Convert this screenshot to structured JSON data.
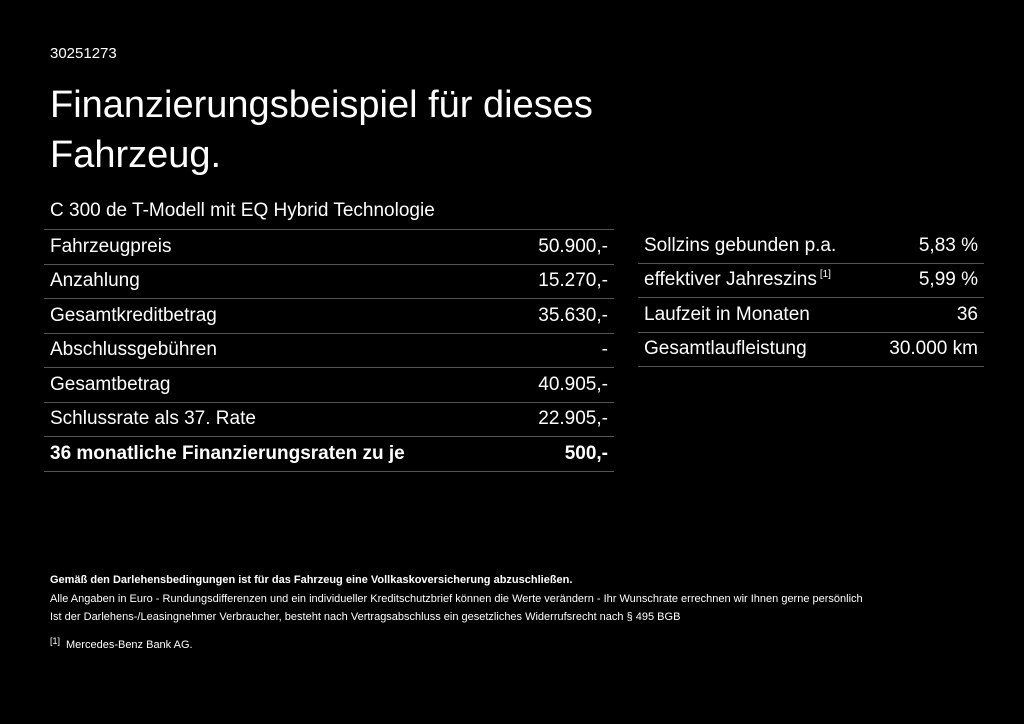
{
  "header": {
    "id": "30251273",
    "title": "Finanzierungsbeispiel für dieses Fahrzeug.",
    "model": "C 300 de T-Modell mit EQ Hybrid Technologie"
  },
  "left_table": {
    "rows": [
      [
        "Fahrzeugpreis",
        "50.900,-"
      ],
      [
        "Anzahlung",
        "15.270,-"
      ],
      [
        "Gesamtkreditbetrag",
        "35.630,-"
      ],
      [
        "Abschlussgebühren",
        "-"
      ],
      [
        "Gesamtbetrag",
        "40.905,-"
      ],
      [
        "Schlussrate als 37. Rate",
        "22.905,-"
      ],
      [
        "36 monatliche Finanzierungsraten zu je",
        "500,-"
      ]
    ]
  },
  "right_table": {
    "rows": [
      {
        "label": "Sollzins gebunden p.a.",
        "value": "5,83 %"
      },
      {
        "label": "effektiver Jahreszins",
        "note": "[1]",
        "value": "5,99 %"
      },
      {
        "label": "Laufzeit in Monaten",
        "value": "36"
      },
      {
        "label": "Gesamtlaufleistung",
        "value": "30.000 km"
      }
    ]
  },
  "notes": {
    "bold": "Gemäß den Darlehensbedingungen ist für das Fahrzeug eine Vollkaskoversicherung abzuschließen.",
    "lines": [
      "Alle Angaben in Euro - Rundungsdifferenzen und ein individueller Kreditschutzbrief können die Werte verändern - Ihr Wunschrate errechnen wir Ihnen gerne persönlich",
      "Ist der Darlehens-/Leasingnehmer Verbraucher, besteht nach Vertragsabschluss ein gesetzliches Widerrufsrecht nach § 495 BGB"
    ],
    "footnote": {
      "marker": "[1]",
      "text": "Mercedes-Benz Bank AG."
    }
  }
}
